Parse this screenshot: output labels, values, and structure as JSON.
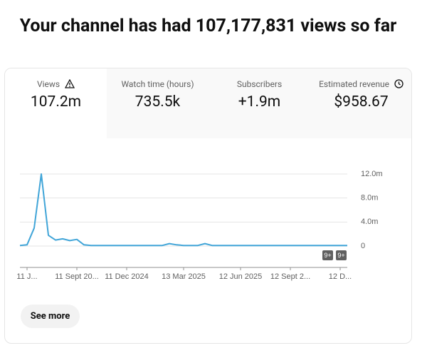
{
  "header": {
    "title": "Your channel has had 107,177,831 views so far"
  },
  "tabs": [
    {
      "label": "Views",
      "value": "107.2m"
    },
    {
      "label": "Watch time (hours)",
      "value": "735.5k"
    },
    {
      "label": "Subscribers",
      "value": "+1.9m"
    },
    {
      "label": "Estimated revenue",
      "value": "$958.67"
    }
  ],
  "chart_data": {
    "type": "line",
    "color": "#41a5d8",
    "categories": [
      null,
      "11 J...",
      null,
      null,
      null,
      null,
      null,
      null,
      "11 Sept 20...",
      null,
      null,
      null,
      null,
      null,
      null,
      "11 Dec 2024",
      null,
      null,
      null,
      null,
      null,
      null,
      null,
      "13 Mar 2025",
      null,
      null,
      null,
      null,
      null,
      null,
      null,
      "12 Jun 2025",
      null,
      null,
      null,
      null,
      null,
      null,
      "12 Sept 2...",
      null,
      null,
      null,
      null,
      null,
      null,
      "12 D...",
      null
    ],
    "values": [
      0.1,
      0.2,
      3.0,
      12.0,
      1.8,
      1.0,
      1.2,
      0.9,
      1.1,
      0.2,
      0.1,
      0.1,
      0.1,
      0.1,
      0.1,
      0.1,
      0.1,
      0.1,
      0.1,
      0.1,
      0.1,
      0.4,
      0.2,
      0.1,
      0.1,
      0.1,
      0.4,
      0.1,
      0.1,
      0.1,
      0.1,
      0.1,
      0.1,
      0.1,
      0.1,
      0.1,
      0.1,
      0.1,
      0.1,
      0.1,
      0.1,
      0.1,
      0.1,
      0.1,
      0.1,
      0.1,
      0.1
    ],
    "ylim": [
      0,
      12
    ],
    "yticks": [
      0,
      {
        "value": 4,
        "label": "4.0m"
      },
      {
        "value": 8,
        "label": "8.0m"
      },
      {
        "value": 12,
        "label": "12.0m"
      }
    ],
    "grid": true,
    "annotations": [
      "9+",
      "9+"
    ]
  },
  "button": "See more"
}
